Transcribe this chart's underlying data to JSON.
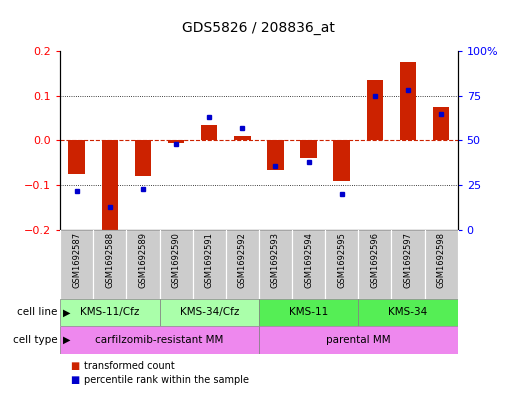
{
  "title": "GDS5826 / 208836_at",
  "samples": [
    "GSM1692587",
    "GSM1692588",
    "GSM1692589",
    "GSM1692590",
    "GSM1692591",
    "GSM1692592",
    "GSM1692593",
    "GSM1692594",
    "GSM1692595",
    "GSM1692596",
    "GSM1692597",
    "GSM1692598"
  ],
  "transformed_count": [
    -0.075,
    -0.2,
    -0.08,
    -0.005,
    0.035,
    0.01,
    -0.065,
    -0.04,
    -0.09,
    0.135,
    0.175,
    0.075
  ],
  "percentile_rank": [
    22,
    13,
    23,
    48,
    63,
    57,
    36,
    38,
    20,
    75,
    78,
    65
  ],
  "ylim_left": [
    -0.2,
    0.2
  ],
  "ylim_right": [
    0,
    100
  ],
  "yticks_left": [
    -0.2,
    -0.1,
    0,
    0.1,
    0.2
  ],
  "yticks_right": [
    0,
    25,
    50,
    75,
    100
  ],
  "cell_line_groups": [
    {
      "label": "KMS-11/Cfz",
      "start": 0,
      "end": 3,
      "color": "#AAFFAA"
    },
    {
      "label": "KMS-34/Cfz",
      "start": 3,
      "end": 6,
      "color": "#AAFFAA"
    },
    {
      "label": "KMS-11",
      "start": 6,
      "end": 9,
      "color": "#55EE55"
    },
    {
      "label": "KMS-34",
      "start": 9,
      "end": 12,
      "color": "#55EE55"
    }
  ],
  "cell_type_groups": [
    {
      "label": "carfilzomib-resistant MM",
      "start": 0,
      "end": 6,
      "color": "#EE88EE"
    },
    {
      "label": "parental MM",
      "start": 6,
      "end": 12,
      "color": "#EE88EE"
    }
  ],
  "bar_color": "#CC2200",
  "dot_color": "#0000CC",
  "zero_line_color": "#CC2200",
  "bg_color": "#FFFFFF",
  "plot_bg": "#FFFFFF",
  "sample_box_color": "#CCCCCC",
  "legend_items": [
    {
      "label": "transformed count",
      "color": "#CC2200"
    },
    {
      "label": "percentile rank within the sample",
      "color": "#0000CC"
    }
  ],
  "bar_width": 0.5
}
